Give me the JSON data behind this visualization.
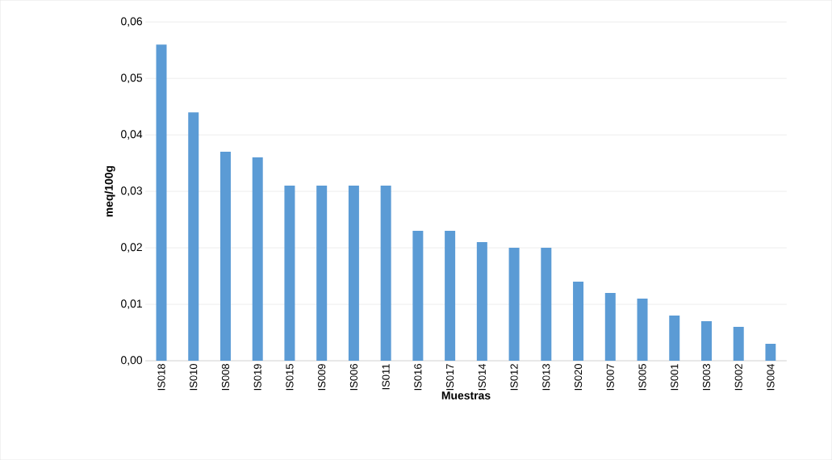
{
  "chart_data": {
    "type": "bar",
    "xlabel": "Muestras",
    "ylabel": "meq/100g",
    "categories": [
      "IS018",
      "IS010",
      "IS008",
      "IS019",
      "IS015",
      "IS009",
      "IS006",
      "IS011",
      "IS016",
      "IS017",
      "IS014",
      "IS012",
      "IS013",
      "IS020",
      "IS007",
      "IS005",
      "IS001",
      "IS003",
      "IS002",
      "IS004"
    ],
    "values": [
      0.056,
      0.044,
      0.037,
      0.036,
      0.031,
      0.031,
      0.031,
      0.031,
      0.023,
      0.023,
      0.021,
      0.02,
      0.02,
      0.014,
      0.012,
      0.011,
      0.008,
      0.007,
      0.006,
      0.003
    ],
    "color": "#5b9bd5",
    "ylim": [
      0,
      0.06
    ],
    "yticks": [
      {
        "value": 0,
        "label": "0,00"
      },
      {
        "value": 0.01,
        "label": "0,01"
      },
      {
        "value": 0.02,
        "label": "0,02"
      },
      {
        "value": 0.03,
        "label": "0,03"
      },
      {
        "value": 0.04,
        "label": "0,04"
      },
      {
        "value": 0.05,
        "label": "0,05"
      },
      {
        "value": 0.06,
        "label": "0,06"
      }
    ],
    "grid": "y"
  }
}
